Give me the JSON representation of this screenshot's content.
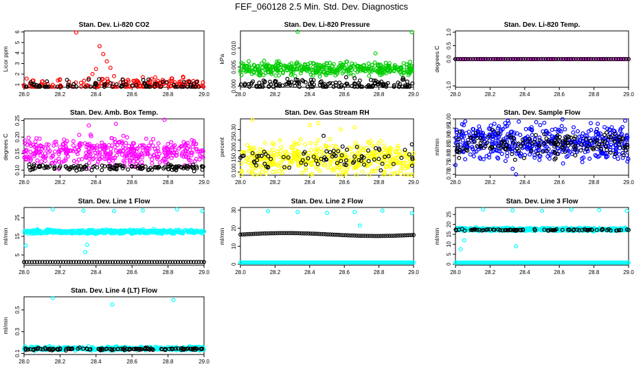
{
  "title": "FEF_060128  2.5 Min. Std. Dev. Diagnostics",
  "chart_data": [
    {
      "type": "scatter",
      "title": "Stan. Dev. Li-820 CO2",
      "ylabel": "Licor ppm",
      "xlim": [
        28.0,
        29.0
      ],
      "ylim": [
        0.75,
        6.1
      ],
      "xticks": [
        "28.0",
        "28.2",
        "28.4",
        "28.6",
        "28.8",
        "29.0"
      ],
      "yticks": [
        "1",
        "2",
        "3",
        "4",
        "5",
        "6"
      ],
      "series": [
        {
          "color": "#ff0000",
          "x": [
            28.29,
            28.42,
            28.44,
            28.46,
            28.4,
            28.48,
            28.38,
            28.5,
            28.36,
            28.55,
            28.58,
            28.66,
            28.1,
            28.2,
            28.7
          ],
          "y": [
            5.95,
            4.65,
            3.9,
            3.2,
            2.5,
            2.6,
            2.0,
            1.8,
            1.6,
            1.45,
            1.3,
            1.7,
            1.3,
            1.5,
            1.4
          ],
          "base": [
            1.0,
            0.85
          ],
          "density": 170
        },
        {
          "color": "#000000",
          "x": [],
          "y": [],
          "base": [
            0.9,
            0.75
          ],
          "density": 80
        }
      ]
    },
    {
      "type": "scatter",
      "title": "Stan. Dev. Li-820 Pressure",
      "ylabel": "kPa",
      "xlim": [
        28.0,
        29.0
      ],
      "ylim": [
        -0.0003,
        0.0145
      ],
      "xticks": [
        "28.0",
        "28.2",
        "28.4",
        "28.6",
        "28.8",
        "29.0"
      ],
      "yticks": [
        "0.000",
        "0.005",
        "0.010"
      ],
      "series": [
        {
          "color": "#00cc00",
          "x": [
            28.33,
            28.99,
            28.78
          ],
          "y": [
            0.0143,
            0.0142,
            0.0086
          ],
          "base": [
            0.0045,
            0.0025
          ],
          "density": 400
        },
        {
          "color": "#000000",
          "x": [],
          "y": [],
          "base": [
            0.0005,
            0.002
          ],
          "density": 150
        }
      ]
    },
    {
      "type": "scatter",
      "title": "Stan. Dev. Li-820 Temp.",
      "ylabel": "degrees C",
      "xlim": [
        28.0,
        29.0
      ],
      "ylim": [
        -1.05,
        1.05
      ],
      "xticks": [
        "28.0",
        "28.2",
        "28.4",
        "28.6",
        "28.8",
        "29.0"
      ],
      "yticks": [
        "-1.0",
        "0.0",
        "0.5",
        "1.0"
      ],
      "series": [
        {
          "color": "#ff00ff",
          "x": [],
          "y": [],
          "base": [
            0,
            0
          ],
          "density": 80,
          "line": true
        },
        {
          "color": "#000000",
          "x": [],
          "y": [],
          "base": [
            0,
            0
          ],
          "density": 70,
          "line": true
        }
      ]
    },
    {
      "type": "scatter",
      "title": "Stan. Dev. Amb. Box Temp.",
      "ylabel": "degrees C",
      "xlim": [
        28.0,
        29.0
      ],
      "ylim": [
        0.085,
        0.255
      ],
      "xticks": [
        "28.0",
        "28.2",
        "28.4",
        "28.6",
        "28.8",
        "29.0"
      ],
      "yticks": [
        "0.10",
        "0.15",
        "0.20",
        "0.25"
      ],
      "series": [
        {
          "color": "#ff00ff",
          "x": [
            28.78,
            28.51,
            28.36
          ],
          "y": [
            0.252,
            0.24,
            0.235
          ],
          "base": [
            0.155,
            0.06
          ],
          "density": 420
        },
        {
          "color": "#000000",
          "x": [],
          "y": [],
          "base": [
            0.108,
            0.012
          ],
          "density": 130
        }
      ]
    },
    {
      "type": "scatter",
      "title": "Stan. Dev. Gas Stream RH",
      "ylabel": "percent",
      "xlim": [
        28.0,
        29.0
      ],
      "ylim": [
        0.085,
        0.35
      ],
      "xticks": [
        "28.0",
        "28.2",
        "28.4",
        "28.6",
        "28.8",
        "29.0"
      ],
      "yticks": [
        "0.10",
        "0.15",
        "0.20",
        "0.25",
        "0.30"
      ],
      "series": [
        {
          "color": "#ffff00",
          "x": [
            28.07,
            28.4,
            28.45,
            28.58,
            28.66
          ],
          "y": [
            0.345,
            0.32,
            0.33,
            0.3,
            0.31
          ],
          "base": [
            0.165,
            0.12
          ],
          "density": 450
        },
        {
          "color": "#000000",
          "x": [
            28.99,
            28.48,
            28.59
          ],
          "y": [
            0.23,
            0.27,
            0.22
          ],
          "base": [
            0.16,
            0.08
          ],
          "density": 80
        }
      ]
    },
    {
      "type": "scatter",
      "title": "Stan. Dev. Sample Flow",
      "ylabel": "ml/min",
      "xlim": [
        28.0,
        29.0
      ],
      "ylim": [
        0.695,
        1.0
      ],
      "xticks": [
        "28.0",
        "28.2",
        "28.4",
        "28.6",
        "28.8",
        "29.0"
      ],
      "yticks": [
        "0.70",
        "0.75",
        "0.80",
        "0.85",
        "0.90",
        "0.95",
        "1.00"
      ],
      "series": [
        {
          "color": "#0000ff",
          "x": [
            28.35,
            28.33,
            28.0,
            28.98
          ],
          "y": [
            0.7,
            0.73,
            0.75,
            0.99
          ],
          "base": [
            0.875,
            0.14
          ],
          "density": 480
        },
        {
          "color": "#000000",
          "x": [],
          "y": [],
          "base": [
            0.86,
            0.1
          ],
          "density": 150
        }
      ]
    },
    {
      "type": "scatter",
      "title": "Stan. Dev. Line 1 Flow",
      "ylabel": "ml/min",
      "xlim": [
        28.0,
        29.0
      ],
      "ylim": [
        -0.5,
        30.5
      ],
      "xticks": [
        "28.0",
        "28.2",
        "28.4",
        "28.6",
        "28.8",
        "29.0"
      ],
      "yticks": [
        "5",
        "15",
        "25"
      ],
      "series": [
        {
          "color": "#00ffff",
          "x": [
            28.16,
            28.33,
            28.5,
            28.66,
            28.85,
            28.99,
            28.01,
            28.34,
            28.35,
            28.72
          ],
          "y": [
            29.5,
            28.8,
            28.6,
            28.9,
            29.5,
            28.6,
            10,
            6.5,
            10.5,
            19
          ],
          "base": [
            17.5,
            1.5
          ],
          "density": 500
        },
        {
          "color": "#000000",
          "x": [],
          "y": [],
          "base": [
            1.2,
            0
          ],
          "density": 70,
          "line": true
        }
      ]
    },
    {
      "type": "scatter",
      "title": "Stan. Dev. Line 2 Flow",
      "ylabel": "ml/min",
      "xlim": [
        28.0,
        29.0
      ],
      "ylim": [
        -0.5,
        31.5
      ],
      "xticks": [
        "28.0",
        "28.2",
        "28.4",
        "28.6",
        "28.8",
        "29.0"
      ],
      "yticks": [
        "0",
        "10",
        "20",
        "30"
      ],
      "series": [
        {
          "color": "#00ffff",
          "x": [
            28.16,
            28.33,
            28.5,
            28.66,
            28.82,
            28.99,
            28.69
          ],
          "y": [
            29.5,
            29,
            28.5,
            29,
            29.8,
            28.4,
            21.5
          ],
          "base": [
            1.0,
            0
          ],
          "density": 150,
          "line": true
        },
        {
          "color": "#000000",
          "x": [],
          "y": [],
          "base": [
            16.5,
            0.8
          ],
          "density": 80,
          "curve": true
        }
      ]
    },
    {
      "type": "scatter",
      "title": "Stan. Dev. Line 3 Flow",
      "ylabel": "ml/min",
      "xlim": [
        28.0,
        29.0
      ],
      "ylim": [
        -0.5,
        28.5
      ],
      "xticks": [
        "28.0",
        "28.2",
        "28.4",
        "28.6",
        "28.8",
        "29.0"
      ],
      "yticks": [
        "0",
        "5",
        "10",
        "15",
        "20",
        "25"
      ],
      "series": [
        {
          "color": "#00ffff",
          "x": [
            28.16,
            28.33,
            28.5,
            28.67,
            28.83,
            28.99,
            28.03,
            28.05,
            28.35
          ],
          "y": [
            27.5,
            27,
            26.8,
            27.5,
            27.2,
            26.8,
            7.5,
            12,
            9
          ],
          "base": [
            17.5,
            1.2
          ],
          "density": 450
        },
        {
          "color": "#00ffff",
          "x": [],
          "y": [],
          "base": [
            0.8,
            0
          ],
          "density": 150,
          "line": true
        },
        {
          "color": "#000000",
          "x": [],
          "y": [],
          "base": [
            17.2,
            0.6
          ],
          "density": 80
        }
      ]
    },
    {
      "type": "scatter",
      "title": "Stan. Dev. Line 4 (LT) Flow",
      "ylabel": "ml/min",
      "xlim": [
        28.0,
        29.0
      ],
      "ylim": [
        0.09,
        0.62
      ],
      "xticks": [
        "28.0",
        "28.2",
        "28.4",
        "28.6",
        "28.8",
        "29.0"
      ],
      "yticks": [
        "0.1",
        "0.3",
        "0.5"
      ],
      "series": [
        {
          "color": "#00ffff",
          "x": [
            28.16,
            28.49,
            28.83
          ],
          "y": [
            0.61,
            0.55,
            0.59
          ],
          "base": [
            0.145,
            0.025
          ],
          "density": 400
        },
        {
          "color": "#000000",
          "x": [],
          "y": [],
          "base": [
            0.14,
            0.015
          ],
          "density": 120
        }
      ]
    }
  ]
}
